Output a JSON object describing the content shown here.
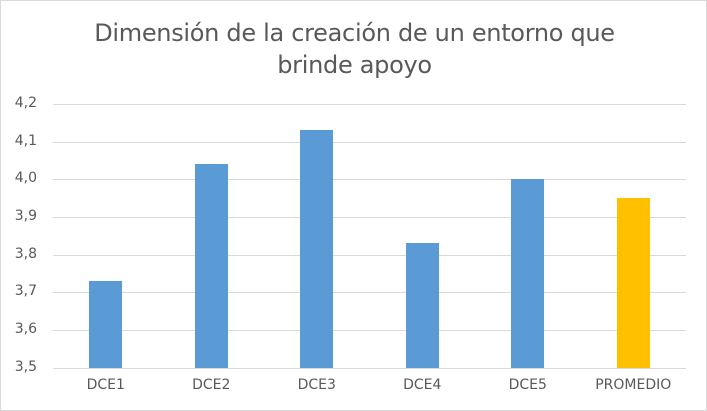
{
  "chart_data": {
    "type": "bar",
    "title": "Dimensión de la creación de un entorno que brinde apoyo",
    "title_lines": [
      "Dimensión de la creación de un entorno que",
      "brinde apoyo"
    ],
    "categories": [
      "DCE1",
      "DCE2",
      "DCE3",
      "DCE4",
      "DCE5",
      "PROMEDIO"
    ],
    "values": [
      3.73,
      4.04,
      4.13,
      3.83,
      4.0,
      3.95
    ],
    "colors": [
      "#5b9bd5",
      "#5b9bd5",
      "#5b9bd5",
      "#5b9bd5",
      "#5b9bd5",
      "#ffc000"
    ],
    "xlabel": "",
    "ylabel": "",
    "ylim": [
      3.5,
      4.2
    ],
    "yticks": [
      "3,5",
      "3,6",
      "3,7",
      "3,8",
      "3,9",
      "4,0",
      "4,1",
      "4,2"
    ],
    "grid": true,
    "legend": null
  }
}
